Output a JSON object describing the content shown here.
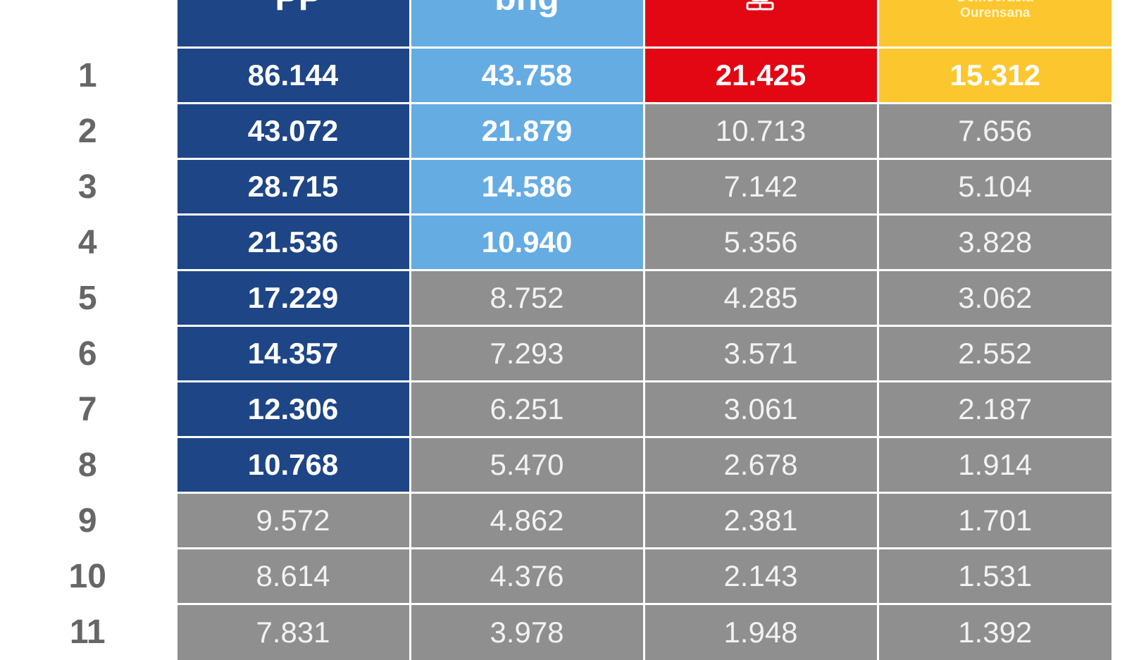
{
  "table": {
    "headers": [
      {
        "key": "pp",
        "logo_text": "PP",
        "color": "#1e4586"
      },
      {
        "key": "bng",
        "logo_text": "bng",
        "color": "#65ace3"
      },
      {
        "key": "psoe",
        "logo_text": "",
        "color": "#e30713",
        "icon": "psoe-rose-icon"
      },
      {
        "key": "do",
        "logo_lines": [
          "Democracia",
          "Ourensana"
        ],
        "color": "#fcc72e"
      }
    ],
    "unselected_color": "#8f8f8f",
    "rows": [
      {
        "rank": "1",
        "values": [
          "86.144",
          "43.758",
          "21.425",
          "15.312"
        ],
        "selected": [
          true,
          true,
          true,
          true
        ]
      },
      {
        "rank": "2",
        "values": [
          "43.072",
          "21.879",
          "10.713",
          "7.656"
        ],
        "selected": [
          true,
          true,
          false,
          false
        ]
      },
      {
        "rank": "3",
        "values": [
          "28.715",
          "14.586",
          "7.142",
          "5.104"
        ],
        "selected": [
          true,
          true,
          false,
          false
        ]
      },
      {
        "rank": "4",
        "values": [
          "21.536",
          "10.940",
          "5.356",
          "3.828"
        ],
        "selected": [
          true,
          true,
          false,
          false
        ]
      },
      {
        "rank": "5",
        "values": [
          "17.229",
          "8.752",
          "4.285",
          "3.062"
        ],
        "selected": [
          true,
          false,
          false,
          false
        ]
      },
      {
        "rank": "6",
        "values": [
          "14.357",
          "7.293",
          "3.571",
          "2.552"
        ],
        "selected": [
          true,
          false,
          false,
          false
        ]
      },
      {
        "rank": "7",
        "values": [
          "12.306",
          "6.251",
          "3.061",
          "2.187"
        ],
        "selected": [
          true,
          false,
          false,
          false
        ]
      },
      {
        "rank": "8",
        "values": [
          "10.768",
          "5.470",
          "2.678",
          "1.914"
        ],
        "selected": [
          true,
          false,
          false,
          false
        ]
      },
      {
        "rank": "9",
        "values": [
          "9.572",
          "4.862",
          "2.381",
          "1.701"
        ],
        "selected": [
          false,
          false,
          false,
          false
        ]
      },
      {
        "rank": "10",
        "values": [
          "8.614",
          "4.376",
          "2.143",
          "1.531"
        ],
        "selected": [
          false,
          false,
          false,
          false
        ]
      },
      {
        "rank": "11",
        "values": [
          "7.831",
          "3.978",
          "1.948",
          "1.392"
        ],
        "selected": [
          false,
          false,
          false,
          false
        ]
      }
    ]
  }
}
